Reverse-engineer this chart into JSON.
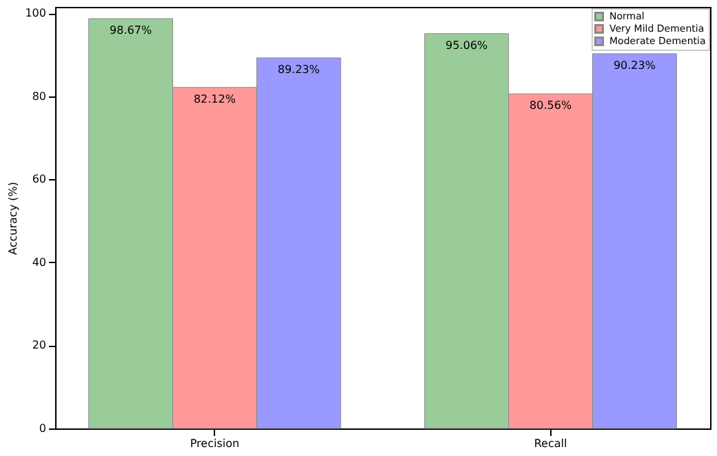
{
  "chart_data": {
    "type": "bar",
    "ylabel": "Accuracy (%)",
    "categories": [
      "Precision",
      "Recall"
    ],
    "series": [
      {
        "name": "Normal",
        "color": "#99cc99",
        "values": [
          98.67,
          95.06
        ]
      },
      {
        "name": "Very Mild Dementia",
        "color": "#ff9999",
        "values": [
          82.12,
          80.56
        ]
      },
      {
        "name": "Moderate Dementia",
        "color": "#9999ff",
        "values": [
          89.23,
          90.23
        ]
      }
    ],
    "value_labels": [
      [
        "98.67%",
        "95.06%"
      ],
      [
        "82.12%",
        "80.56%"
      ],
      [
        "89.23%",
        "90.23%"
      ]
    ],
    "ylim": [
      0,
      101.5
    ],
    "yticks": [
      0,
      20,
      40,
      60,
      80,
      100
    ],
    "legend": "top right",
    "grid": false
  }
}
